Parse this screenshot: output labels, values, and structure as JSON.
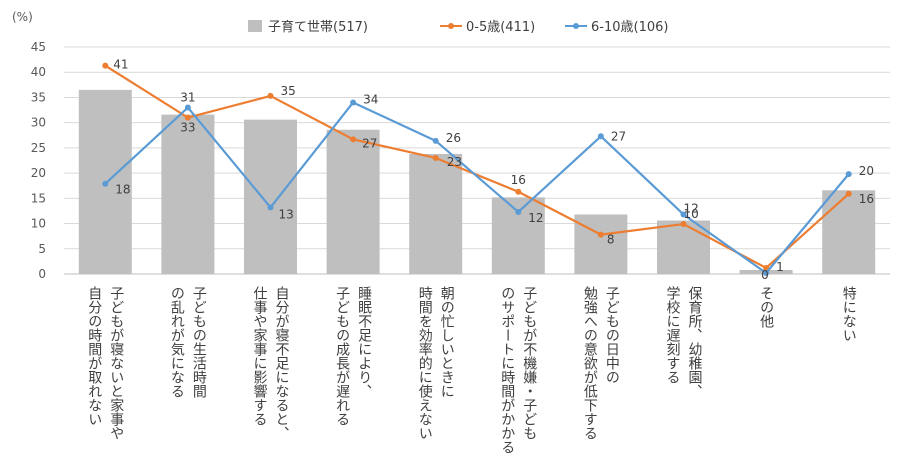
{
  "chart_data": {
    "type": "bar",
    "ylabel": "(%)",
    "ylim": [
      0,
      45
    ],
    "yticks": [
      0,
      5,
      10,
      15,
      20,
      25,
      30,
      35,
      40,
      45
    ],
    "grid": true,
    "legend_position": "top",
    "categories": [
      [
        "自分の時間が取れない",
        "子どもが寝ないと家事や"
      ],
      [
        "の乱れが気になる",
        "子どもの生活時間"
      ],
      [
        "仕事や家事に影響する",
        "自分が寝不足になると、"
      ],
      [
        "子どもの成長が遅れる",
        "睡眠不足により、"
      ],
      [
        "時間を効率的に使えない",
        "朝の忙しいときに"
      ],
      [
        "のサポートに時間がかかる",
        "子どもが不機嫌・子ども"
      ],
      [
        "勉強への意欲が低下する",
        "子どもの日中の"
      ],
      [
        "学校に遅刻する",
        "保育所、幼稚園、"
      ],
      [
        "その他"
      ],
      [
        "特にない"
      ]
    ],
    "series": [
      {
        "name": "子育て世帯(517)",
        "kind": "bar",
        "color": "#bfbfbf",
        "values": [
          36.5,
          31.6,
          30.6,
          28.6,
          23.8,
          15.2,
          11.8,
          10.6,
          0.8,
          16.6
        ]
      },
      {
        "name": "0-5歳(411)",
        "kind": "line",
        "color": "#ed7d31",
        "values": [
          41.3,
          31.0,
          35.3,
          26.7,
          23.0,
          16.3,
          7.8,
          9.9,
          1.2,
          15.9
        ]
      },
      {
        "name": "6-10歳(106)",
        "kind": "line",
        "color": "#5b9bd5",
        "values": [
          17.9,
          33.0,
          13.2,
          34.0,
          26.4,
          12.3,
          27.3,
          11.8,
          0.2,
          19.8
        ]
      }
    ],
    "annotations": {
      "0-5歳(411)": [
        "41",
        "31",
        "35",
        "27",
        "23",
        "16",
        "8",
        "10",
        "1",
        "16"
      ],
      "6-10歳(106)": [
        "18",
        "33",
        "13",
        "34",
        "26",
        "12",
        "27",
        "12",
        "0",
        "20"
      ]
    }
  }
}
